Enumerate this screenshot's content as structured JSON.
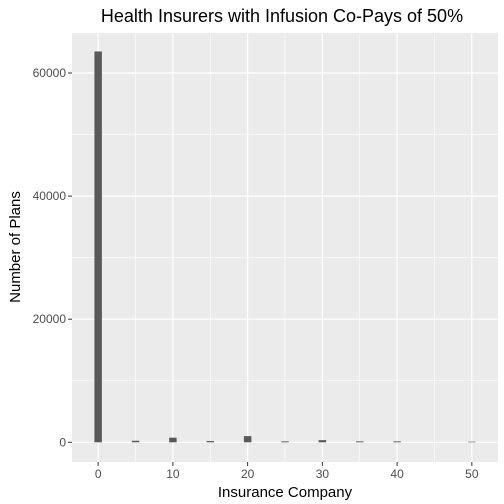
{
  "chart_data": {
    "type": "bar",
    "title": "Health Insurers with Infusion Co-Pays of 50%",
    "xlabel": "Insurance Company",
    "ylabel": "Number of Plans",
    "xlim": [
      -3.5,
      53.5
    ],
    "ylim": [
      -3200,
      66500
    ],
    "x_ticks": [
      0,
      10,
      20,
      30,
      40,
      50
    ],
    "y_ticks": [
      0,
      20000,
      40000,
      60000
    ],
    "y_tick_labels": [
      "0",
      "20000",
      "40000",
      "60000"
    ],
    "grid": true,
    "bar_width": 1,
    "bar_color": "#595959",
    "panel_color": "#ebebeb",
    "x": [
      0,
      5,
      10,
      15,
      20,
      25,
      30,
      35,
      40,
      50
    ],
    "values": [
      63500,
      250,
      750,
      200,
      1000,
      150,
      350,
      150,
      150,
      100
    ]
  }
}
